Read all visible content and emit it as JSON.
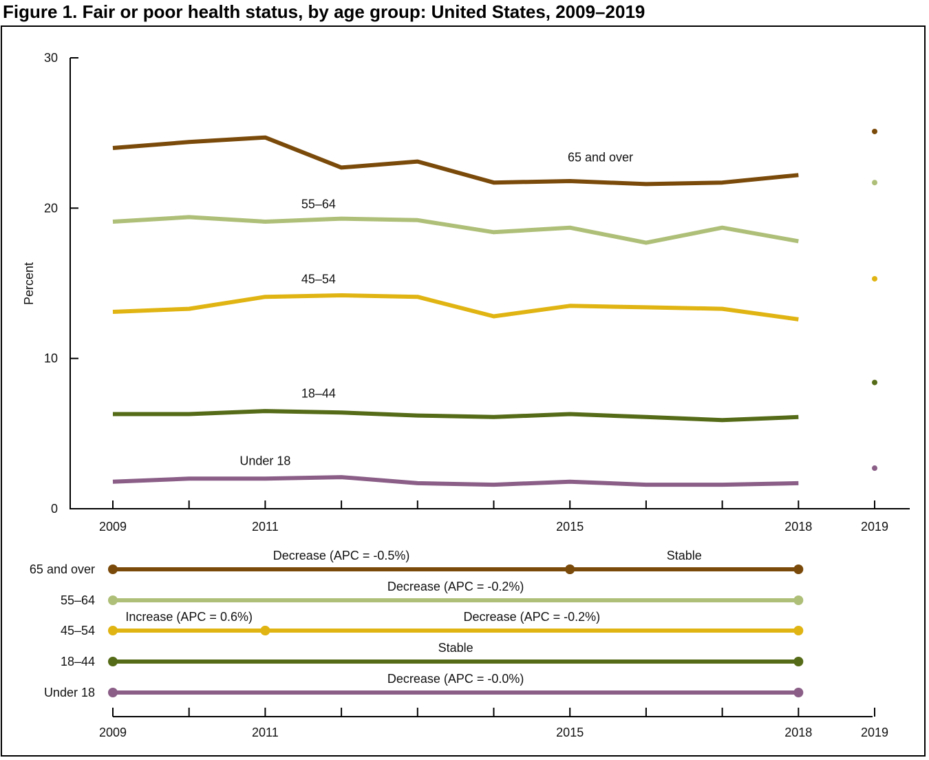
{
  "title": "Figure 1. Fair or poor health status, by age group: United States, 2009–2019",
  "chart_data": {
    "type": "line",
    "title": "Figure 1. Fair or poor health status, by age group: United States, 2009–2019",
    "ylabel": "Percent",
    "xlabel": "",
    "ylim": [
      0,
      30
    ],
    "yticks": [
      "0",
      "10",
      "20",
      "30"
    ],
    "x": [
      2009,
      2010,
      2011,
      2012,
      2013,
      2014,
      2015,
      2016,
      2017,
      2018
    ],
    "xtick_labels": [
      {
        "year": 2009,
        "label": "2009"
      },
      {
        "year": 2011,
        "label": "2011"
      },
      {
        "year": 2015,
        "label": "2015"
      },
      {
        "year": 2018,
        "label": "2018"
      },
      {
        "year": 2019,
        "label": "2019"
      }
    ],
    "series": [
      {
        "name": "65 and over",
        "color": "#7a4a0a",
        "values": [
          24.0,
          24.4,
          24.7,
          22.7,
          23.1,
          21.7,
          21.8,
          21.6,
          21.7,
          22.2
        ],
        "value_2019": 25.1
      },
      {
        "name": "55–64",
        "color": "#aebf78",
        "values": [
          19.1,
          19.4,
          19.1,
          19.3,
          19.2,
          18.4,
          18.7,
          17.7,
          18.7,
          17.8
        ],
        "value_2019": 21.7
      },
      {
        "name": "45–54",
        "color": "#e0b412",
        "values": [
          13.1,
          13.3,
          14.1,
          14.2,
          14.1,
          12.8,
          13.5,
          13.4,
          13.3,
          12.6
        ],
        "value_2019": 15.3
      },
      {
        "name": "18–44",
        "color": "#556b17",
        "values": [
          6.3,
          6.3,
          6.5,
          6.4,
          6.2,
          6.1,
          6.3,
          6.1,
          5.9,
          6.1
        ],
        "value_2019": 8.4
      },
      {
        "name": "Under 18",
        "color": "#8a5e87",
        "values": [
          1.8,
          2.0,
          2.0,
          2.1,
          1.7,
          1.6,
          1.8,
          1.6,
          1.6,
          1.7
        ],
        "value_2019": 2.7
      }
    ],
    "trends": [
      {
        "group": "65 and over",
        "segments": [
          {
            "start": 2009,
            "end": 2015,
            "label": "Decrease (APC = -0.5%)"
          },
          {
            "start": 2015,
            "end": 2018,
            "label": "Stable"
          }
        ]
      },
      {
        "group": "55–64",
        "segments": [
          {
            "start": 2009,
            "end": 2018,
            "label": "Decrease (APC = -0.2%)"
          }
        ]
      },
      {
        "group": "45–54",
        "segments": [
          {
            "start": 2009,
            "end": 2011,
            "label": "Increase (APC = 0.6%)"
          },
          {
            "start": 2011,
            "end": 2018,
            "label": "Decrease (APC = -0.2%)"
          }
        ]
      },
      {
        "group": "18–44",
        "segments": [
          {
            "start": 2009,
            "end": 2018,
            "label": "Stable"
          }
        ]
      },
      {
        "group": "Under 18",
        "segments": [
          {
            "start": 2009,
            "end": 2018,
            "label": "Decrease (APC = -0.0%)"
          }
        ]
      }
    ]
  }
}
